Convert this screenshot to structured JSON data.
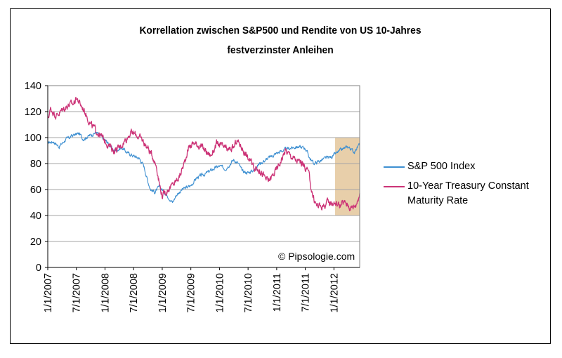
{
  "chart_data": {
    "type": "line",
    "title": "Korrellation zwischen S&P500 und Rendite von US 10-Jahres",
    "subtitle": "festverzinster Anleihen",
    "xlabel": "",
    "ylabel": "",
    "ylim": [
      0,
      140
    ],
    "yticks": [
      0,
      20,
      40,
      60,
      80,
      100,
      120,
      140
    ],
    "grid": true,
    "xticks": [
      "1/1/2007",
      "7/1/2007",
      "1/1/2008",
      "7/1/2008",
      "1/1/2009",
      "7/1/2009",
      "1/1/2010",
      "7/1/2010",
      "1/1/2011",
      "7/1/2011",
      "1/1/2012"
    ],
    "x_range_years": [
      2007.0,
      2012.45
    ],
    "highlight": {
      "x_from": 2012.02,
      "x_to": 2012.45,
      "y_from": 40,
      "y_to": 100,
      "color": "#e8cfaa"
    },
    "legend_position": "right",
    "series": [
      {
        "name": "S&P 500 Index",
        "color": "#3d8fd1",
        "x": [
          2007.0,
          2007.1,
          2007.2,
          2007.3,
          2007.45,
          2007.55,
          2007.62,
          2007.75,
          2007.85,
          2007.95,
          2008.05,
          2008.15,
          2008.3,
          2008.4,
          2008.5,
          2008.6,
          2008.68,
          2008.75,
          2008.8,
          2008.87,
          2008.95,
          2009.0,
          2009.1,
          2009.18,
          2009.25,
          2009.35,
          2009.5,
          2009.6,
          2009.75,
          2009.9,
          2010.0,
          2010.1,
          2010.25,
          2010.33,
          2010.4,
          2010.5,
          2010.6,
          2010.7,
          2010.85,
          2011.0,
          2011.1,
          2011.25,
          2011.35,
          2011.5,
          2011.58,
          2011.65,
          2011.75,
          2011.85,
          2011.95,
          2012.05,
          2012.15,
          2012.25,
          2012.35,
          2012.45
        ],
        "values": [
          96,
          97,
          93,
          98,
          102,
          103,
          99,
          102,
          104,
          100,
          96,
          90,
          92,
          88,
          86,
          84,
          78,
          66,
          60,
          58,
          62,
          60,
          55,
          50,
          56,
          60,
          63,
          69,
          72,
          76,
          78,
          76,
          83,
          80,
          74,
          73,
          75,
          80,
          84,
          88,
          90,
          92,
          93,
          92,
          84,
          80,
          82,
          84,
          85,
          88,
          91,
          93,
          89,
          95
        ]
      },
      {
        "name": "10-Year Treasury Constant Maturity Rate",
        "color": "#cc3377",
        "x": [
          2007.0,
          2007.05,
          2007.15,
          2007.25,
          2007.35,
          2007.45,
          2007.5,
          2007.55,
          2007.65,
          2007.75,
          2007.85,
          2007.95,
          2008.05,
          2008.15,
          2008.25,
          2008.35,
          2008.45,
          2008.55,
          2008.65,
          2008.75,
          2008.85,
          2008.9,
          2008.95,
          2009.0,
          2009.1,
          2009.2,
          2009.3,
          2009.4,
          2009.45,
          2009.55,
          2009.65,
          2009.75,
          2009.85,
          2009.95,
          2010.05,
          2010.15,
          2010.25,
          2010.3,
          2010.4,
          2010.5,
          2010.6,
          2010.7,
          2010.75,
          2010.85,
          2010.95,
          2011.05,
          2011.15,
          2011.25,
          2011.35,
          2011.45,
          2011.55,
          2011.6,
          2011.65,
          2011.7,
          2011.8,
          2011.9,
          2012.0,
          2012.1,
          2012.2,
          2012.3,
          2012.38,
          2012.45
        ],
        "values": [
          115,
          122,
          117,
          121,
          125,
          126,
          131,
          127,
          120,
          110,
          105,
          100,
          95,
          90,
          92,
          98,
          104,
          102,
          98,
          92,
          84,
          78,
          65,
          55,
          60,
          64,
          70,
          82,
          92,
          96,
          94,
          90,
          86,
          95,
          93,
          90,
          92,
          98,
          92,
          84,
          78,
          75,
          72,
          66,
          72,
          80,
          90,
          86,
          82,
          80,
          74,
          62,
          52,
          48,
          47,
          50,
          50,
          48,
          50,
          46,
          48,
          57
        ]
      }
    ]
  },
  "watermark": "© Pipsologie.com"
}
